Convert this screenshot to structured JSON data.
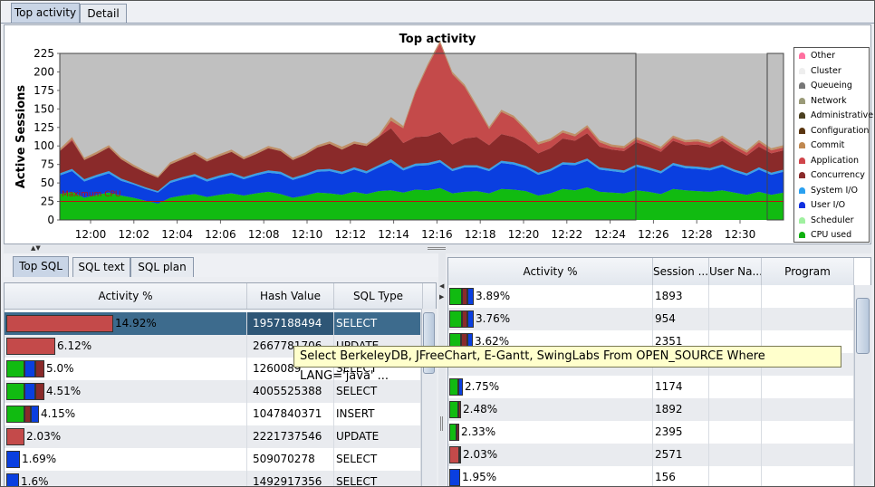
{
  "tabs": {
    "top_activity": "Top activity",
    "detail": "Detail"
  },
  "chart_data": {
    "type": "area",
    "title": "Top activity",
    "ylabel": "Active Sessions",
    "ylim": [
      0,
      225
    ],
    "yticks": [
      0,
      25,
      50,
      75,
      100,
      125,
      150,
      175,
      200,
      225
    ],
    "x_tick_labels": [
      "12:00",
      "12:02",
      "12:04",
      "12:06",
      "12:08",
      "12:10",
      "12:12",
      "12:14",
      "12:16",
      "12:18",
      "12:20",
      "12:22",
      "12:24",
      "12:26",
      "12:28",
      "12:30"
    ],
    "max_cpu_label": "Maximum CPU",
    "max_cpu_value": 25,
    "colors": {
      "cpu": "#11bb11",
      "userio": "#0a3fe0",
      "systemio": "#3aa0e8",
      "concurrency": "#8a2a2a",
      "application": "#c44a4a",
      "commit": "#c09068",
      "plot_bg": "#c0c0c0"
    },
    "legend": [
      {
        "name": "Other",
        "color": "#ff6f9f"
      },
      {
        "name": "Cluster",
        "color": "#eeeeee"
      },
      {
        "name": "Queueing",
        "color": "#777777"
      },
      {
        "name": "Network",
        "color": "#9a9a78"
      },
      {
        "name": "Administrative",
        "color": "#4b4020"
      },
      {
        "name": "Configuration",
        "color": "#5a3510"
      },
      {
        "name": "Commit",
        "color": "#c08850"
      },
      {
        "name": "Application",
        "color": "#d0454a"
      },
      {
        "name": "Concurrency",
        "color": "#8a2a2a"
      },
      {
        "name": "System I/O",
        "color": "#2aa0f0"
      },
      {
        "name": "User I/O",
        "color": "#1030e0"
      },
      {
        "name": "Scheduler",
        "color": "#a0f0a0"
      },
      {
        "name": "CPU used",
        "color": "#10b010"
      }
    ],
    "series": {
      "cpu": [
        35,
        38,
        30,
        34,
        37,
        33,
        30,
        26,
        22,
        30,
        33,
        35,
        31,
        34,
        36,
        33,
        36,
        38,
        35,
        30,
        33,
        37,
        36,
        34,
        38,
        35,
        39,
        40,
        37,
        41,
        40,
        43,
        36,
        38,
        39,
        36,
        42,
        41,
        39,
        33,
        36,
        42,
        40,
        44,
        38,
        37,
        36,
        40,
        38,
        35,
        42,
        40,
        39,
        38,
        40,
        37,
        34,
        38,
        34,
        37
      ],
      "userio": [
        25,
        28,
        22,
        24,
        26,
        20,
        18,
        16,
        15,
        20,
        22,
        24,
        21,
        23,
        25,
        22,
        24,
        26,
        27,
        24,
        26,
        28,
        30,
        28,
        30,
        28,
        32,
        38,
        30,
        32,
        34,
        35,
        30,
        33,
        32,
        30,
        35,
        34,
        31,
        28,
        30,
        33,
        34,
        36,
        30,
        29,
        28,
        32,
        30,
        28,
        32,
        30,
        30,
        29,
        32,
        28,
        26,
        30,
        27,
        28
      ],
      "systemio": [
        3,
        3,
        3,
        3,
        3,
        3,
        2,
        2,
        2,
        3,
        3,
        3,
        3,
        3,
        3,
        3,
        3,
        3,
        3,
        3,
        3,
        3,
        3,
        3,
        3,
        3,
        3,
        4,
        3,
        3,
        3,
        3,
        3,
        3,
        3,
        3,
        3,
        3,
        3,
        3,
        3,
        3,
        3,
        3,
        3,
        3,
        3,
        3,
        3,
        3,
        3,
        3,
        3,
        3,
        3,
        3,
        3,
        3,
        3,
        3
      ],
      "concurrency": [
        30,
        38,
        26,
        28,
        32,
        26,
        22,
        20,
        18,
        22,
        24,
        27,
        24,
        26,
        28,
        24,
        26,
        30,
        28,
        24,
        26,
        30,
        34,
        30,
        32,
        34,
        38,
        42,
        34,
        36,
        36,
        38,
        33,
        36,
        38,
        32,
        36,
        34,
        30,
        26,
        28,
        32,
        30,
        34,
        28,
        26,
        26,
        30,
        28,
        26,
        30,
        28,
        30,
        28,
        32,
        28,
        24,
        28,
        26,
        26
      ],
      "application": [
        0,
        2,
        0,
        0,
        0,
        0,
        0,
        0,
        0,
        0,
        0,
        0,
        0,
        0,
        0,
        0,
        0,
        0,
        0,
        0,
        0,
        0,
        0,
        0,
        0,
        0,
        0,
        10,
        20,
        60,
        95,
        120,
        95,
        70,
        40,
        22,
        30,
        26,
        18,
        12,
        10,
        8,
        6,
        8,
        6,
        4,
        4,
        4,
        4,
        4,
        4,
        4,
        4,
        4,
        4,
        4,
        4,
        6,
        4,
        4
      ],
      "commit": [
        3,
        3,
        3,
        3,
        3,
        3,
        3,
        2,
        2,
        3,
        3,
        3,
        3,
        3,
        3,
        3,
        3,
        3,
        3,
        3,
        3,
        3,
        3,
        4,
        3,
        3,
        3,
        5,
        3,
        3,
        3,
        3,
        3,
        3,
        3,
        3,
        3,
        3,
        3,
        3,
        3,
        3,
        3,
        3,
        3,
        3,
        3,
        3,
        3,
        3,
        3,
        3,
        3,
        3,
        3,
        3,
        3,
        3,
        3,
        3
      ]
    }
  },
  "left": {
    "tabs": {
      "top_sql": "Top SQL",
      "sql_text": "SQL text",
      "sql_plan": "SQL plan"
    },
    "headers": {
      "activity": "Activity %",
      "hash": "Hash Value",
      "type": "SQL Type"
    },
    "rows": [
      {
        "pct": "14.92%",
        "hash": "1957188494",
        "type": "SELECT"
      },
      {
        "pct": "6.12%",
        "hash": "2667781706",
        "type": "UPDATE"
      },
      {
        "pct": "5.0%",
        "hash": "1260089",
        "type": "SELECT"
      },
      {
        "pct": "4.51%",
        "hash": "4005525388",
        "type": "SELECT"
      },
      {
        "pct": "4.15%",
        "hash": "1047840371",
        "type": "INSERT"
      },
      {
        "pct": "2.03%",
        "hash": "2221737546",
        "type": "UPDATE"
      },
      {
        "pct": "1.69%",
        "hash": "509070278",
        "type": "SELECT"
      },
      {
        "pct": "1.6%",
        "hash": "1492917356",
        "type": "SELECT"
      }
    ]
  },
  "right": {
    "headers": {
      "activity": "Activity %",
      "session": "Session ...",
      "user": "User Na...",
      "program": "Program"
    },
    "rows": [
      {
        "pct": "3.89%",
        "session": "1893"
      },
      {
        "pct": "3.76%",
        "session": "954"
      },
      {
        "pct": "3.62%",
        "session": "2351"
      },
      {
        "pct": "",
        "session": ""
      },
      {
        "pct": "2.75%",
        "session": "1174"
      },
      {
        "pct": "2.48%",
        "session": "1892"
      },
      {
        "pct": "2.33%",
        "session": "2395"
      },
      {
        "pct": "2.03%",
        "session": "2571"
      },
      {
        "pct": "1.95%",
        "session": "156"
      }
    ]
  },
  "tooltip": "Select BerkeleyDB, JFreeChart, E-Gantt, SwingLabs From OPEN_SOURCE Where LANG='java' ..."
}
